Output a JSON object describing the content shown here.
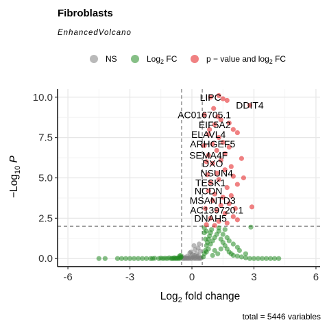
{
  "chart_data": {
    "type": "scatter",
    "title": "Fibroblasts",
    "subtitle": "EnhancedVolcano",
    "xlabel_main": "Log",
    "xlabel_sub": "2",
    "xlabel_tail": " fold change",
    "ylabel_main": "−Log",
    "ylabel_sub": "10",
    "ylabel_italic": " P",
    "xlim": [
      -6.5,
      6.2
    ],
    "ylim": [
      -0.5,
      10.5
    ],
    "x_ticks": [
      -6,
      -3,
      0,
      3,
      6
    ],
    "x_tick_labels": [
      "-6",
      "-3",
      "0",
      "3",
      "6"
    ],
    "y_ticks": [
      0.0,
      2.5,
      5.0,
      7.5,
      10.0
    ],
    "y_tick_labels": [
      "0.0",
      "2.5",
      "5.0",
      "7.5",
      "10.0"
    ],
    "fc_cutoff": 0.5,
    "p_cutoff_log10": 2.0,
    "grid": true,
    "legend_position": "top",
    "legend": [
      {
        "key": "ns",
        "prefix": "NS",
        "sub": "",
        "suffix": "",
        "color": "#808080"
      },
      {
        "key": "fc",
        "prefix": "Log",
        "sub": "2",
        "suffix": " FC",
        "color": "#228b22"
      },
      {
        "key": "both",
        "prefix": "p − value and log",
        "sub": "2",
        "suffix": " FC",
        "color": "#e41a1c"
      }
    ],
    "caption": "total = 5446 variables",
    "labels": [
      {
        "text": "LIPC",
        "x": 0.9,
        "y": 10.0
      },
      {
        "text": "DDIT4",
        "x": 2.8,
        "y": 9.5
      },
      {
        "text": "AC016705.1",
        "x": 0.6,
        "y": 8.9
      },
      {
        "text": "EIF5A2",
        "x": 1.1,
        "y": 8.3
      },
      {
        "text": "ELAVL4",
        "x": 0.8,
        "y": 7.7
      },
      {
        "text": "ARHGEF5",
        "x": 1.0,
        "y": 7.1
      },
      {
        "text": "SEMA4F",
        "x": 0.8,
        "y": 6.4
      },
      {
        "text": "DXO",
        "x": 1.0,
        "y": 5.9
      },
      {
        "text": "NSUN4",
        "x": 1.2,
        "y": 5.3
      },
      {
        "text": "TESK1",
        "x": 0.9,
        "y": 4.7
      },
      {
        "text": "NCDN",
        "x": 0.8,
        "y": 4.2
      },
      {
        "text": "MSANTD3",
        "x": 1.0,
        "y": 3.6
      },
      {
        "text": "AC139720.1",
        "x": 1.2,
        "y": 3.0
      },
      {
        "text": "DNAH5",
        "x": 0.9,
        "y": 2.5
      }
    ],
    "series": [
      {
        "name": "NS",
        "color": "#808080",
        "points": [
          [
            -0.45,
            0.0
          ],
          [
            -0.4,
            0.02
          ],
          [
            -0.35,
            0.0
          ],
          [
            -0.3,
            0.05
          ],
          [
            -0.25,
            0.0
          ],
          [
            -0.2,
            0.03
          ],
          [
            -0.15,
            0.0
          ],
          [
            -0.1,
            0.08
          ],
          [
            -0.05,
            0.0
          ],
          [
            0.0,
            0.02
          ],
          [
            0.05,
            0.1
          ],
          [
            0.1,
            0.0
          ],
          [
            0.15,
            0.06
          ],
          [
            0.2,
            0.0
          ],
          [
            0.25,
            0.12
          ],
          [
            0.3,
            0.0
          ],
          [
            0.35,
            0.04
          ],
          [
            0.4,
            0.0
          ],
          [
            0.45,
            0.05
          ],
          [
            -0.42,
            0.1
          ],
          [
            -0.22,
            0.15
          ],
          [
            0.12,
            0.2
          ],
          [
            0.32,
            0.18
          ],
          [
            0.02,
            0.25
          ],
          [
            0.22,
            0.3
          ],
          [
            -0.1,
            0.35
          ],
          [
            0.4,
            0.45
          ],
          [
            0.15,
            0.55
          ],
          [
            0.3,
            0.65
          ],
          [
            -0.05,
            0.4
          ],
          [
            0.1,
            0.8
          ],
          [
            0.35,
            0.9
          ]
        ]
      },
      {
        "name": "Log2 FC",
        "color": "#228b22",
        "points": [
          [
            -4.5,
            0.0
          ],
          [
            -4.2,
            0.0
          ],
          [
            -3.6,
            0.0
          ],
          [
            -3.4,
            0.0
          ],
          [
            -3.2,
            0.0
          ],
          [
            -3.0,
            0.0
          ],
          [
            -2.8,
            0.0
          ],
          [
            -2.6,
            0.0
          ],
          [
            -2.4,
            0.0
          ],
          [
            -2.2,
            0.0
          ],
          [
            -2.0,
            0.0
          ],
          [
            -1.9,
            0.0
          ],
          [
            -1.8,
            0.02
          ],
          [
            -1.6,
            0.0
          ],
          [
            -1.5,
            0.03
          ],
          [
            -1.4,
            0.0
          ],
          [
            -1.3,
            0.02
          ],
          [
            -1.2,
            0.0
          ],
          [
            -1.1,
            0.04
          ],
          [
            -1.0,
            0.0
          ],
          [
            -0.95,
            0.02
          ],
          [
            -0.9,
            0.0
          ],
          [
            -0.85,
            0.05
          ],
          [
            -0.8,
            0.0
          ],
          [
            -0.75,
            0.03
          ],
          [
            -0.7,
            0.0
          ],
          [
            -0.65,
            0.04
          ],
          [
            -0.6,
            0.0
          ],
          [
            -0.55,
            0.06
          ],
          [
            -0.52,
            0.1
          ],
          [
            -0.6,
            0.15
          ],
          [
            -0.55,
            0.2
          ],
          [
            0.55,
            0.1
          ],
          [
            0.6,
            0.3
          ],
          [
            0.65,
            0.5
          ],
          [
            0.7,
            0.8
          ],
          [
            0.75,
            1.0
          ],
          [
            0.8,
            1.2
          ],
          [
            0.85,
            1.4
          ],
          [
            0.9,
            1.6
          ],
          [
            0.95,
            1.8
          ],
          [
            0.6,
            1.9
          ],
          [
            0.7,
            0.4
          ],
          [
            0.8,
            0.6
          ],
          [
            0.9,
            0.9
          ],
          [
            1.0,
            1.1
          ],
          [
            1.1,
            1.3
          ],
          [
            1.2,
            1.5
          ],
          [
            1.3,
            1.7
          ],
          [
            1.4,
            1.2
          ],
          [
            1.5,
            1.0
          ],
          [
            1.6,
            0.8
          ],
          [
            1.7,
            0.6
          ],
          [
            1.8,
            0.4
          ],
          [
            1.9,
            0.3
          ],
          [
            2.0,
            0.2
          ],
          [
            2.2,
            0.15
          ],
          [
            2.4,
            0.1
          ],
          [
            2.6,
            0.05
          ],
          [
            2.8,
            0.0
          ],
          [
            3.0,
            0.0
          ],
          [
            3.2,
            0.0
          ],
          [
            3.4,
            0.0
          ],
          [
            3.6,
            0.0
          ],
          [
            3.8,
            0.0
          ],
          [
            4.0,
            0.0
          ],
          [
            4.2,
            0.0
          ],
          [
            1.5,
            1.5
          ],
          [
            1.7,
            1.3
          ],
          [
            1.8,
            1.1
          ],
          [
            2.0,
            0.9
          ],
          [
            2.2,
            0.7
          ],
          [
            1.6,
            1.8
          ],
          [
            1.3,
            1.9
          ],
          [
            0.6,
            1.6
          ],
          [
            0.65,
            1.2
          ],
          [
            0.7,
            1.7
          ],
          [
            2.85,
            1.95
          ],
          [
            1.1,
            0.5
          ],
          [
            1.25,
            0.3
          ],
          [
            1.0,
            0.2
          ],
          [
            1.4,
            0.6
          ],
          [
            2.3,
            0.5
          ],
          [
            2.6,
            0.3
          ]
        ]
      },
      {
        "name": "p - value and log2 FC",
        "color": "#e41a1c",
        "points": [
          [
            0.9,
            10.0
          ],
          [
            1.3,
            10.1
          ],
          [
            1.5,
            9.9
          ],
          [
            1.7,
            9.8
          ],
          [
            2.8,
            9.5
          ],
          [
            0.6,
            8.9
          ],
          [
            1.1,
            8.3
          ],
          [
            1.4,
            8.6
          ],
          [
            1.8,
            8.4
          ],
          [
            2.0,
            8.0
          ],
          [
            0.8,
            7.7
          ],
          [
            1.0,
            7.1
          ],
          [
            1.3,
            7.5
          ],
          [
            1.5,
            7.2
          ],
          [
            1.8,
            6.9
          ],
          [
            0.8,
            6.4
          ],
          [
            1.2,
            6.7
          ],
          [
            1.6,
            6.5
          ],
          [
            1.0,
            5.9
          ],
          [
            1.4,
            6.1
          ],
          [
            1.9,
            5.7
          ],
          [
            1.2,
            5.3
          ],
          [
            1.6,
            5.5
          ],
          [
            2.0,
            5.1
          ],
          [
            0.9,
            4.7
          ],
          [
            1.3,
            4.9
          ],
          [
            1.7,
            4.4
          ],
          [
            2.2,
            4.6
          ],
          [
            0.8,
            4.2
          ],
          [
            1.1,
            4.0
          ],
          [
            1.5,
            3.8
          ],
          [
            1.9,
            3.9
          ],
          [
            1.0,
            3.6
          ],
          [
            1.4,
            3.3
          ],
          [
            1.8,
            3.4
          ],
          [
            2.1,
            3.1
          ],
          [
            1.2,
            3.0
          ],
          [
            1.6,
            2.8
          ],
          [
            2.0,
            2.6
          ],
          [
            2.9,
            3.2
          ],
          [
            0.9,
            2.5
          ],
          [
            1.3,
            2.3
          ],
          [
            1.7,
            2.2
          ],
          [
            2.2,
            2.4
          ],
          [
            0.7,
            2.1
          ],
          [
            1.1,
            2.05
          ],
          [
            0.65,
            3.1
          ],
          [
            0.75,
            5.2
          ],
          [
            0.7,
            6.0
          ],
          [
            0.6,
            7.0
          ],
          [
            1.25,
            8.8
          ],
          [
            2.2,
            7.8
          ],
          [
            2.4,
            6.2
          ],
          [
            2.5,
            5.0
          ],
          [
            1.05,
            9.3
          ],
          [
            0.85,
            8.0
          ]
        ]
      }
    ]
  }
}
